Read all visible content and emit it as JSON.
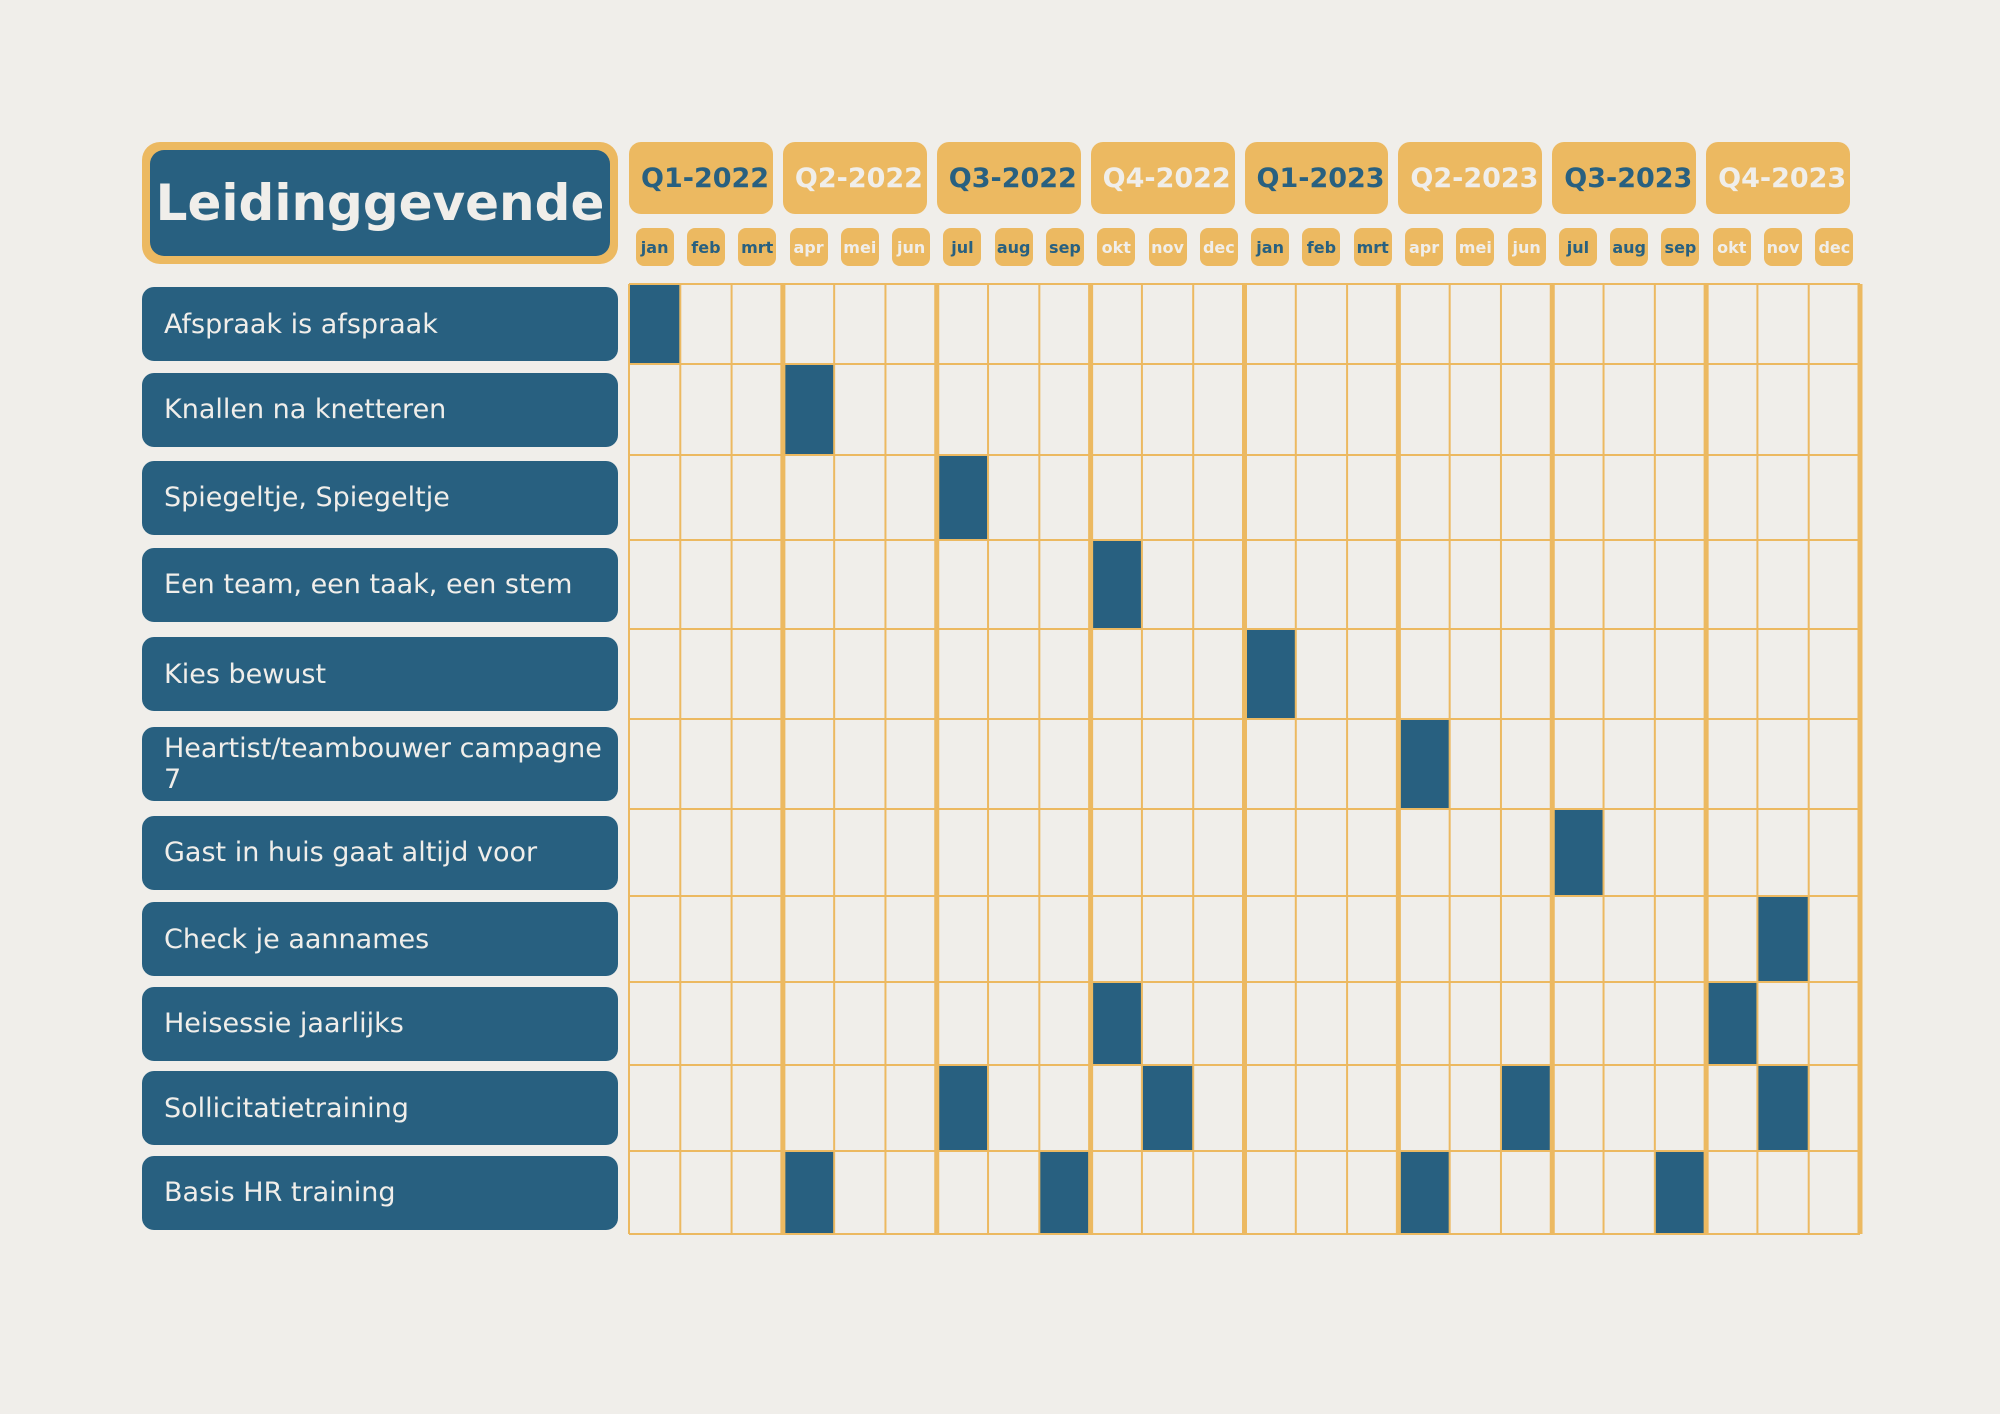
{
  "title": "Leidinggevende",
  "colors": {
    "navy": "#286080",
    "gold": "#ecb961",
    "background": "#f0eeea"
  },
  "quarters": [
    "Q1-2022",
    "Q2-2022",
    "Q3-2022",
    "Q4-2022",
    "Q1-2023",
    "Q2-2023",
    "Q3-2023",
    "Q4-2023"
  ],
  "months": [
    "jan",
    "feb",
    "mrt",
    "apr",
    "mei",
    "jun",
    "jul",
    "aug",
    "sep",
    "okt",
    "nov",
    "dec",
    "jan",
    "feb",
    "mrt",
    "apr",
    "mei",
    "jun",
    "jul",
    "aug",
    "sep",
    "okt",
    "nov",
    "dec"
  ],
  "tasks": [
    {
      "label": "Afspraak is afspraak",
      "months": [
        0
      ]
    },
    {
      "label": "Knallen na knetteren",
      "months": [
        3
      ]
    },
    {
      "label": "Spiegeltje, Spiegeltje",
      "months": [
        6
      ]
    },
    {
      "label": "Een team, een taak, een stem",
      "months": [
        9
      ]
    },
    {
      "label": "Kies bewust",
      "months": [
        12
      ]
    },
    {
      "label": "Heartist/teambouwer campagne 7",
      "months": [
        15
      ]
    },
    {
      "label": "Gast in huis gaat altijd voor",
      "months": [
        18
      ]
    },
    {
      "label": "Check je aannames",
      "months": [
        22
      ]
    },
    {
      "label": "Heisessie jaarlijks",
      "months": [
        9,
        21
      ]
    },
    {
      "label": "Sollicitatietraining",
      "months": [
        6,
        10,
        17,
        22
      ]
    },
    {
      "label": "Basis HR training",
      "months": [
        3,
        8,
        15,
        20
      ]
    }
  ]
}
